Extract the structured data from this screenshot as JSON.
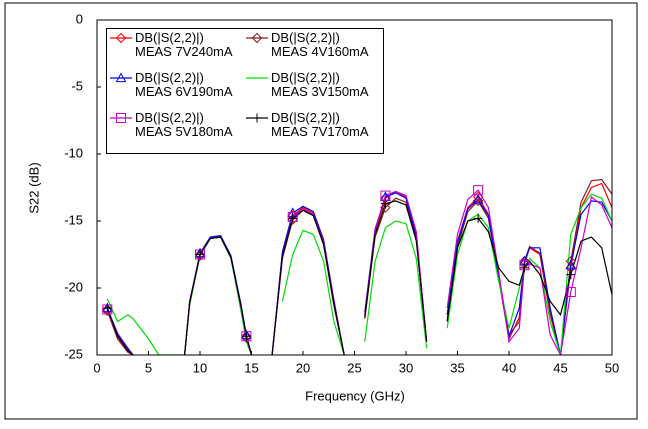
{
  "chart_data": {
    "type": "line",
    "x_label": "Frequency (GHz)",
    "y_label": "S22 (dB)",
    "xlim": [
      0,
      50
    ],
    "xticks": [
      0,
      5,
      10,
      15,
      20,
      25,
      30,
      35,
      40,
      45,
      50
    ],
    "ylim": [
      -25,
      0
    ],
    "yticks": [
      0,
      -5,
      -10,
      -15,
      -20,
      -25
    ],
    "grid": false,
    "legend": "upper left",
    "x": [
      1,
      2,
      3,
      3.5,
      4,
      5,
      6,
      8.5,
      9,
      10,
      11,
      12,
      13,
      14,
      14.5,
      15,
      16,
      17,
      18,
      19,
      20,
      21,
      22,
      23,
      24,
      25,
      26,
      27,
      28,
      29,
      30,
      31,
      32,
      33,
      34,
      35,
      36,
      37,
      38,
      39,
      40,
      41,
      41.5,
      42,
      43,
      44,
      45,
      46,
      47,
      48,
      49,
      50
    ],
    "series": [
      {
        "name": "DB(|S(2,2)|)\nMEAS 7V240mA",
        "color": "#ff0000",
        "marker": "diamond",
        "values": [
          -21.6,
          -23.5,
          -24.6,
          -25,
          null,
          null,
          null,
          -25,
          -21,
          -17.5,
          -16.3,
          -16.2,
          -17.7,
          -21.5,
          -23.6,
          -25,
          null,
          -25,
          -17.5,
          -14.6,
          -14,
          -14.4,
          -16.5,
          -21,
          -25,
          null,
          -22,
          -15.8,
          -13.3,
          -12.8,
          -13.2,
          -16,
          -24,
          null,
          -22,
          -16.5,
          -14,
          -13.2,
          -14.5,
          -19,
          -23.5,
          -22.5,
          -18.2,
          -17,
          -17.5,
          -22,
          -25,
          -18.5,
          -14,
          -12.5,
          -12.2,
          -14
        ]
      },
      {
        "name": "DB(|S(2,2)|)\nMEAS 4V160mA",
        "color": "#8b1a1a",
        "marker": "diamond",
        "values": [
          -21.7,
          -23.8,
          -24.8,
          -25,
          null,
          null,
          null,
          -25,
          -21.2,
          -17.6,
          -16.3,
          -16.1,
          -17.6,
          -21.4,
          -23.7,
          -25,
          null,
          -25,
          -17.8,
          -14.9,
          -14.2,
          -14.6,
          -16.8,
          -21.3,
          -25,
          null,
          -22.3,
          -16.2,
          -14,
          -13.3,
          -13.6,
          -16.3,
          -24,
          null,
          -22.4,
          -16.9,
          -14.3,
          -13.5,
          -14.8,
          -19.3,
          -23.8,
          -22.2,
          -18,
          -16.9,
          -17.4,
          -21.8,
          -25,
          -18,
          -13.6,
          -12,
          -11.9,
          -13
        ]
      },
      {
        "name": "DB(|S(2,2)|)\nMEAS 6V190mA",
        "color": "#0000ff",
        "marker": "triangle",
        "values": [
          -21.5,
          -23.4,
          -24.5,
          -25,
          null,
          null,
          null,
          -25,
          -21,
          -17.4,
          -16.2,
          -16.1,
          -17.6,
          -21.3,
          -23.5,
          -25,
          null,
          -25,
          -17.3,
          -14.4,
          -13.9,
          -14.3,
          -16.4,
          -20.9,
          -25,
          null,
          -21.8,
          -15.6,
          -13.2,
          -12.9,
          -13.3,
          -16.1,
          -24,
          null,
          -22,
          -16.6,
          -14.1,
          -13.4,
          -14.6,
          -19.2,
          -23.6,
          -21.5,
          -18,
          -17,
          -17,
          -21.5,
          -25,
          -18.3,
          -14.5,
          -13.5,
          -13.6,
          -15
        ]
      },
      {
        "name": "DB(|S(2,2)|)\nMEAS 3V150mA",
        "color": "#00dd00",
        "marker": "none",
        "values": [
          -20.8,
          -22.5,
          -22,
          -22.3,
          -22.8,
          -23.8,
          -25,
          -25,
          -21.2,
          -17.6,
          -16.3,
          -16.2,
          -17.8,
          -21.8,
          -24,
          -25,
          null,
          null,
          -21,
          -17.5,
          -15.7,
          -16,
          -18,
          -22.5,
          -25,
          null,
          -24,
          -18,
          -15.5,
          -15,
          -15.2,
          -17.8,
          -24.5,
          null,
          -23,
          -17.5,
          -15,
          -14.5,
          -15.5,
          -19.5,
          -23,
          -20,
          -18.5,
          -17.8,
          -18.5,
          -22.5,
          -25,
          -16,
          -14,
          -13,
          -13.3,
          -15
        ]
      },
      {
        "name": "DB(|S(2,2)|)\nMEAS 5V180mA",
        "color": "#cc00cc",
        "marker": "square",
        "values": [
          -21.6,
          -23.6,
          -24.7,
          -25,
          null,
          null,
          null,
          -25,
          -21,
          -17.5,
          -16.3,
          -16.2,
          -17.7,
          -21.5,
          -23.6,
          -25,
          null,
          -25,
          -17.6,
          -14.7,
          -14.1,
          -14.5,
          -16.6,
          -21.1,
          -25,
          null,
          -22,
          -15.7,
          -13.1,
          -12.8,
          -13.1,
          -15.8,
          -24,
          null,
          -21.5,
          -16,
          -13.4,
          -12.7,
          -14,
          -18.8,
          -24,
          -23,
          -18.3,
          -18.2,
          -18.5,
          -23.5,
          -25,
          -20.3,
          -17,
          -13.2,
          -13.8,
          -15.5
        ]
      },
      {
        "name": "DB(|S(2,2)|)\nMEAS 7V170mA",
        "color": "#000000",
        "marker": "plus",
        "values": [
          -21.5,
          -23.6,
          -24.7,
          -25,
          null,
          null,
          null,
          -25,
          -21.1,
          -17.5,
          -16.3,
          -16.2,
          -17.7,
          -21.4,
          -23.6,
          -25,
          null,
          -25,
          -17.6,
          -14.8,
          -14.2,
          -14.6,
          -16.7,
          -21.2,
          -25,
          null,
          -22.2,
          -16,
          -13.7,
          -13.5,
          -13.8,
          -16.5,
          -24,
          null,
          -22.5,
          -17,
          -15,
          -14.8,
          -15.8,
          -18.5,
          -19.5,
          -19.8,
          -18.5,
          -18,
          -19,
          -21,
          -22,
          -19,
          -16.5,
          -16.2,
          -17,
          -20.5
        ]
      }
    ]
  }
}
